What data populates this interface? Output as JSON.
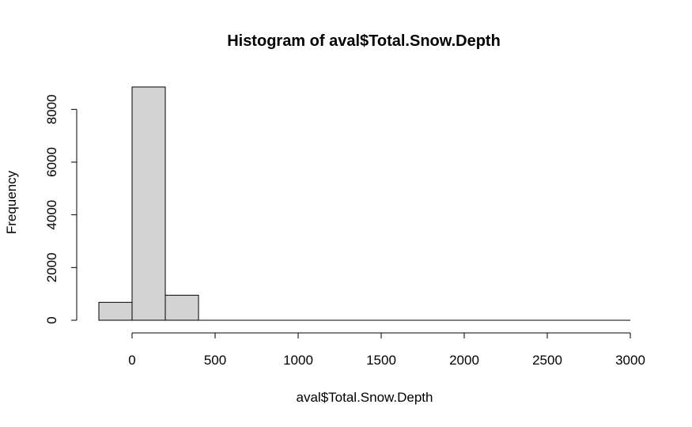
{
  "chart_data": {
    "type": "bar",
    "title": "Histogram of aval$Total.Snow.Depth",
    "xlabel": "aval$Total.Snow.Depth",
    "ylabel": "Frequency",
    "bins": [
      {
        "from": -200,
        "to": 0,
        "count": 680
      },
      {
        "from": 0,
        "to": 200,
        "count": 8850
      },
      {
        "from": 200,
        "to": 400,
        "count": 950
      },
      {
        "from": 400,
        "to": 3000,
        "count": 0
      }
    ],
    "xlim": [
      -200,
      3000
    ],
    "ylim": [
      0,
      8850
    ],
    "x_ticks": [
      0,
      500,
      1000,
      1500,
      2000,
      2500,
      3000
    ],
    "y_ticks": [
      0,
      2000,
      4000,
      6000,
      8000
    ],
    "bar_color": "#d3d3d3",
    "grid": false,
    "legend": "none"
  }
}
